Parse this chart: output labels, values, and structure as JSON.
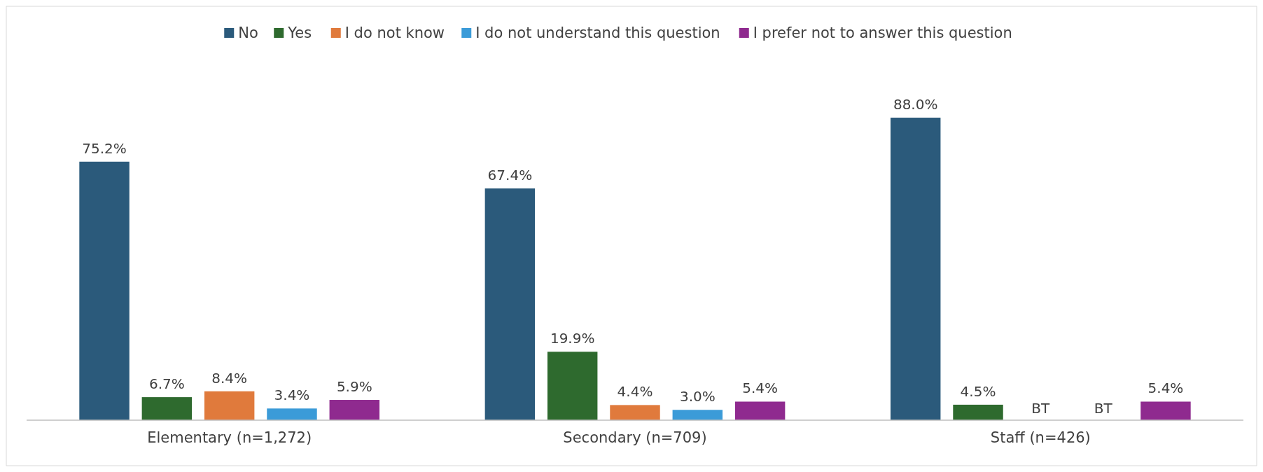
{
  "chart_data": {
    "type": "bar",
    "categories": [
      "Elementary (n=1,272)",
      "Secondary (n=709)",
      "Staff (n=426)"
    ],
    "series": [
      {
        "name": "No",
        "color": "#2b5a7b",
        "values": [
          75.2,
          67.4,
          88.0
        ],
        "value_labels": [
          "75.2%",
          "67.4%",
          "88.0%"
        ]
      },
      {
        "name": "Yes",
        "color": "#2e6a2e",
        "values": [
          6.7,
          19.9,
          4.5
        ],
        "value_labels": [
          "6.7%",
          "19.9%",
          "4.5%"
        ]
      },
      {
        "name": "I do not know",
        "color": "#e07a3c",
        "values": [
          8.4,
          4.4,
          null
        ],
        "value_labels": [
          "8.4%",
          "4.4%",
          "BT"
        ]
      },
      {
        "name": "I do not understand this question",
        "color": "#3b9bd8",
        "values": [
          3.4,
          3.0,
          null
        ],
        "value_labels": [
          "3.4%",
          "3.0%",
          "BT"
        ]
      },
      {
        "name": "I prefer not to answer this question",
        "color": "#8f2a8f",
        "values": [
          5.9,
          5.4,
          5.4
        ],
        "value_labels": [
          "5.9%",
          "5.4%",
          "5.4%"
        ]
      }
    ],
    "legend": "top"
  }
}
